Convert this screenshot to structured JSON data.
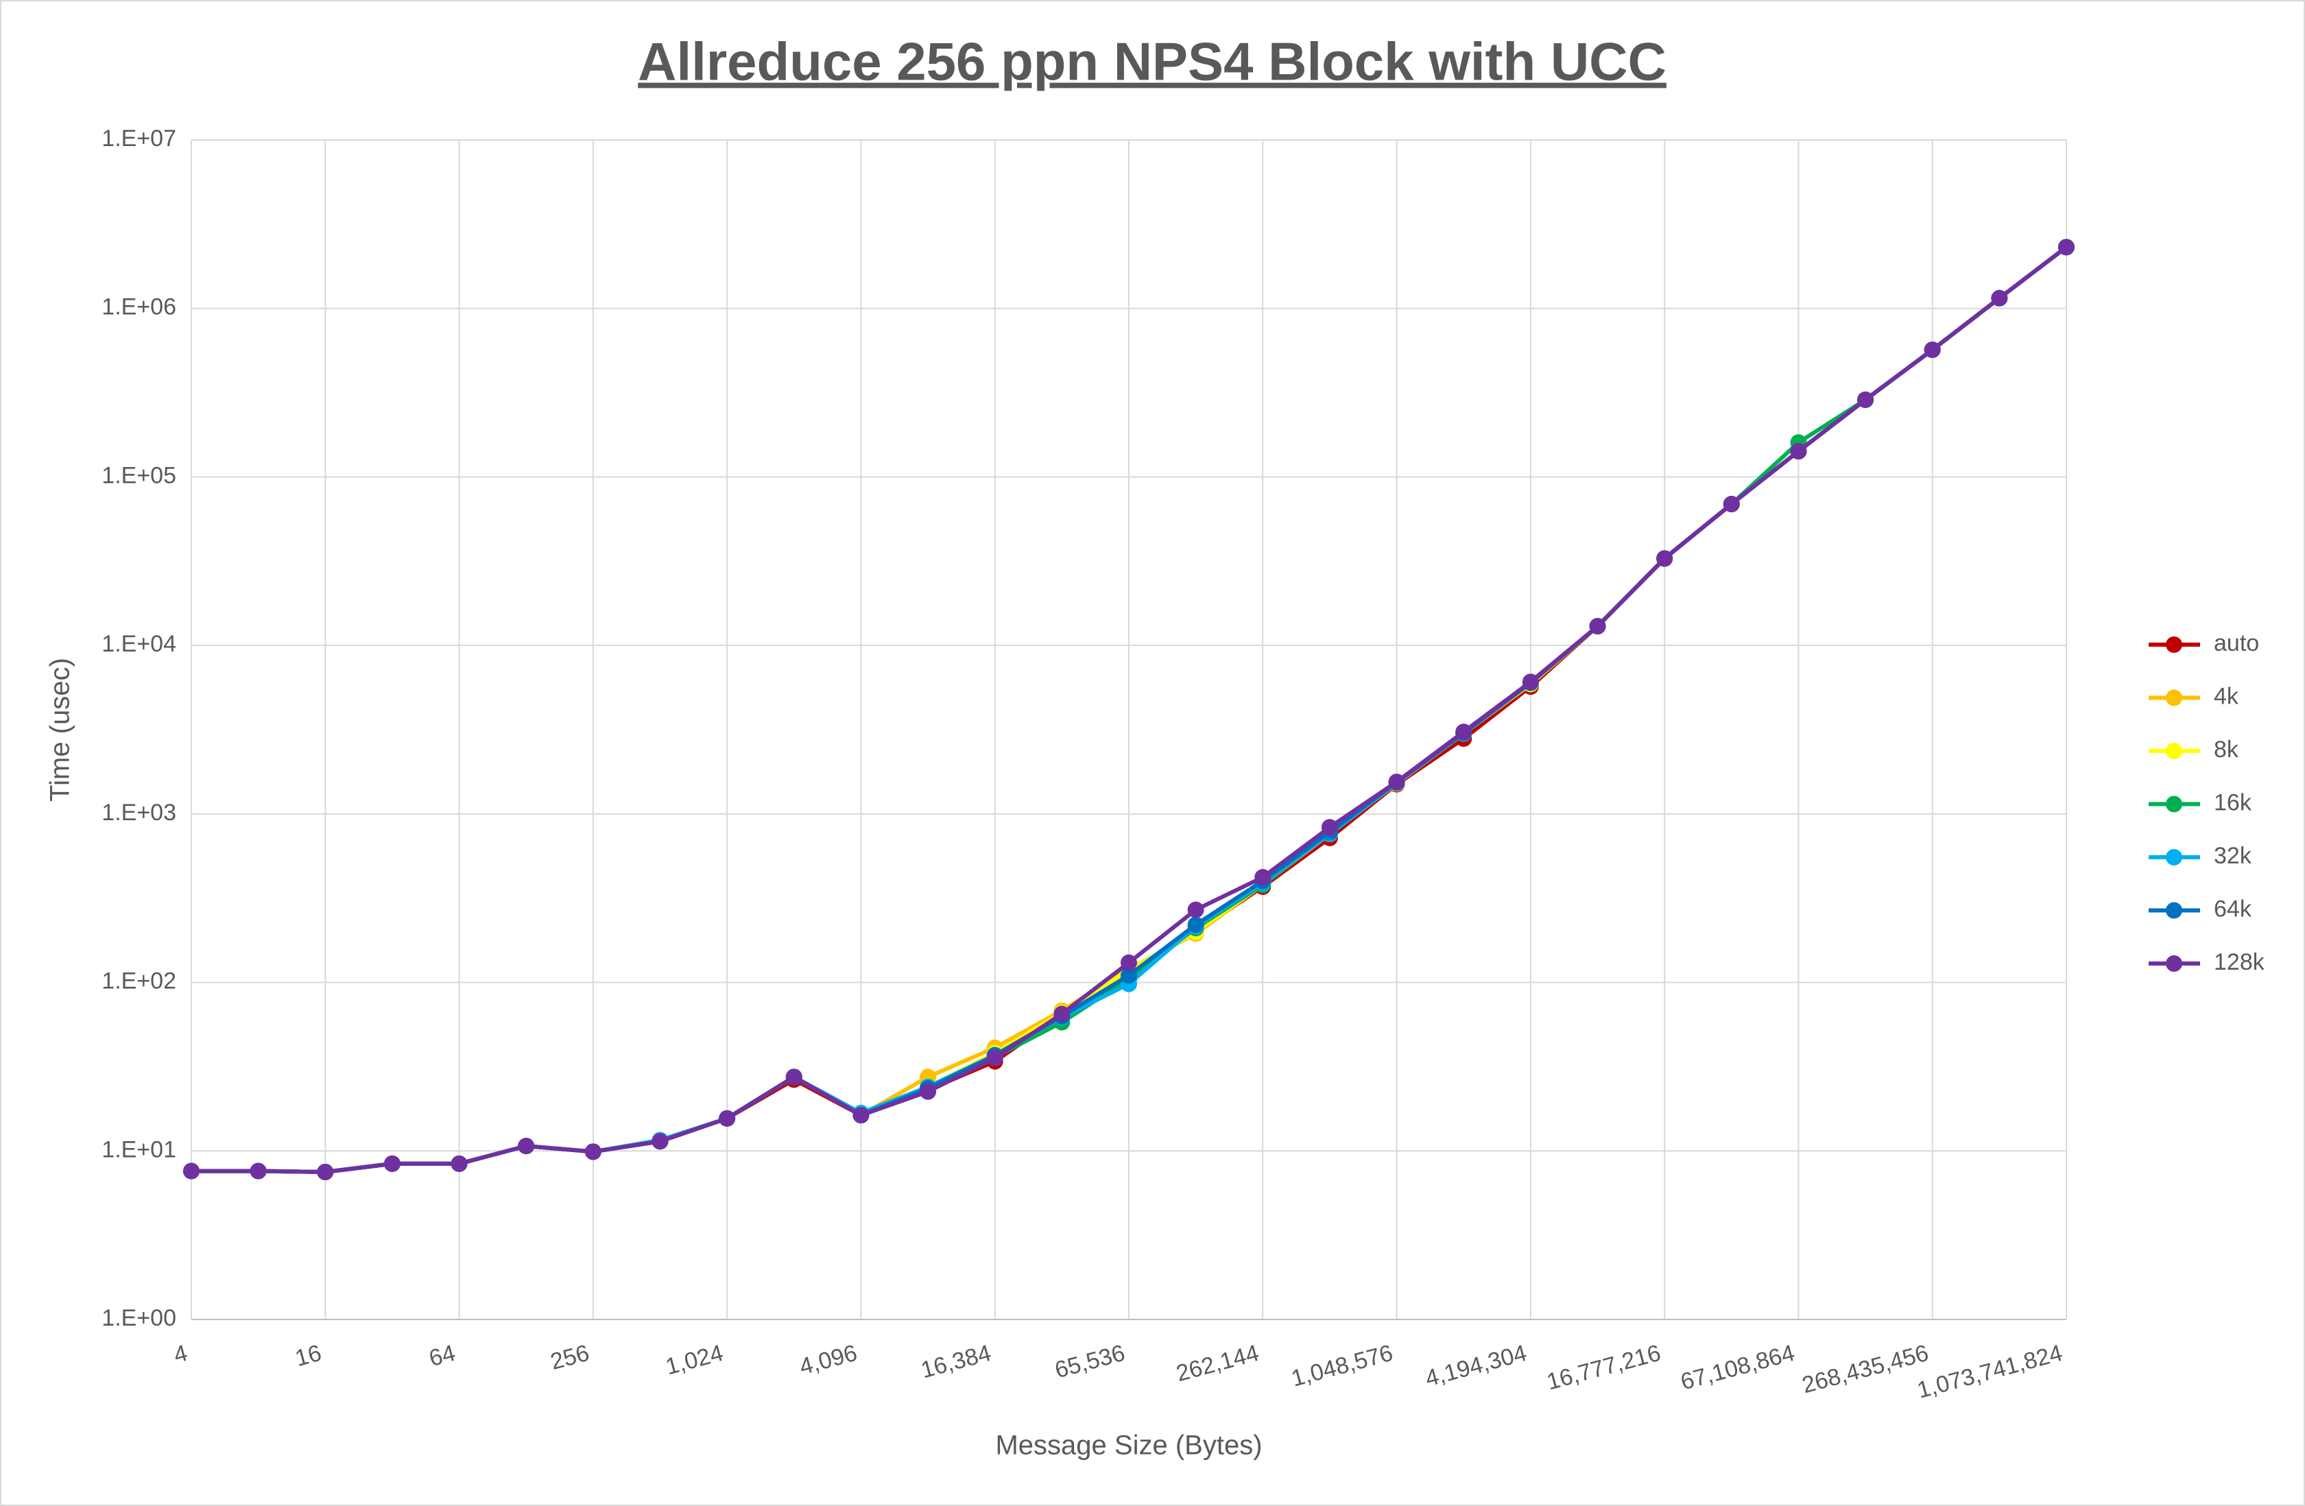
{
  "chart_data": {
    "type": "line",
    "title": "Allreduce 256 ppn NPS4 Block with UCC",
    "x_label": "Message Size (Bytes)",
    "y_label": "Time (usec)",
    "x_log_base": 2,
    "y_log_base": 10,
    "grid": true,
    "legend": "right",
    "x": [
      4,
      8,
      16,
      32,
      64,
      128,
      256,
      512,
      1024,
      2048,
      4096,
      8192,
      16384,
      32768,
      65536,
      131072,
      262144,
      524288,
      1048576,
      2097152,
      4194304,
      8388608,
      16777216,
      33554432,
      67108864,
      134217728,
      268435456,
      536870912,
      1073741824
    ],
    "xlim": [
      4,
      1073741824
    ],
    "xticks": [
      4,
      16,
      64,
      256,
      {
        "value": 1024,
        "label": "1,024"
      },
      {
        "value": 4096,
        "label": "4,096"
      },
      {
        "value": 16384,
        "label": "16,384"
      },
      {
        "value": 65536,
        "label": "65,536"
      },
      {
        "value": 262144,
        "label": "262,144"
      },
      {
        "value": 1048576,
        "label": "1,048,576"
      },
      {
        "value": 4194304,
        "label": "4,194,304"
      },
      {
        "value": 16777216,
        "label": "16,777,216"
      },
      {
        "value": 67108864,
        "label": "67,108,864"
      },
      {
        "value": 268435456,
        "label": "268,435,456"
      },
      {
        "value": 1073741824,
        "label": "1,073,741,824"
      }
    ],
    "ylim": [
      1,
      10000000
    ],
    "yticks": [
      {
        "value": 1,
        "label": "1.E+00"
      },
      {
        "value": 10,
        "label": "1.E+01"
      },
      {
        "value": 100,
        "label": "1.E+02"
      },
      {
        "value": 1000,
        "label": "1.E+03"
      },
      {
        "value": 10000,
        "label": "1.E+04"
      },
      {
        "value": 100000,
        "label": "1.E+05"
      },
      {
        "value": 1000000,
        "label": "1.E+06"
      },
      {
        "value": 10000000,
        "label": "1.E+07"
      }
    ],
    "series": [
      {
        "name": "auto",
        "color": "#c00000",
        "values": [
          7.6,
          7.6,
          7.5,
          8.4,
          8.4,
          10.7,
          9.9,
          11.4,
          15.6,
          26.5,
          16.3,
          23,
          34,
          64,
          115,
          200,
          370,
          720,
          1500,
          2800,
          5700,
          13000,
          32800,
          69000,
          142000,
          287000,
          568000,
          1150000,
          2310000
        ]
      },
      {
        "name": "4k",
        "color": "#ffc000",
        "values": [
          7.6,
          7.6,
          7.5,
          8.4,
          8.4,
          10.7,
          9.9,
          11.4,
          15.6,
          27.5,
          16.3,
          27.5,
          41,
          68,
          120,
          195,
          380,
          760,
          1520,
          3000,
          5900,
          13000,
          32800,
          69000,
          142000,
          287000,
          568000,
          1150000,
          2310000
        ]
      },
      {
        "name": "8k",
        "color": "#ffff00",
        "values": [
          7.6,
          7.6,
          7.5,
          8.4,
          8.4,
          10.7,
          9.9,
          11.4,
          15.6,
          27.5,
          16.3,
          24,
          38,
          66,
          118,
          200,
          385,
          770,
          1520,
          3000,
          5900,
          13000,
          32800,
          69000,
          142000,
          287000,
          568000,
          1150000,
          2310000
        ]
      },
      {
        "name": "16k",
        "color": "#00b050",
        "values": [
          7.6,
          7.6,
          7.5,
          8.4,
          8.4,
          10.7,
          9.9,
          11.4,
          15.6,
          27.5,
          16.3,
          23,
          36,
          58,
          105,
          210,
          380,
          770,
          1530,
          3000,
          6000,
          13000,
          32800,
          69000,
          160000,
          287000,
          568000,
          1150000,
          2310000
        ]
      },
      {
        "name": "32k",
        "color": "#00b0f0",
        "values": [
          7.6,
          7.6,
          7.5,
          8.4,
          8.4,
          10.7,
          9.9,
          11.6,
          15.6,
          27.5,
          16.8,
          24,
          37,
          62,
          98,
          215,
          390,
          760,
          1530,
          3000,
          6000,
          13000,
          32800,
          69000,
          142000,
          287000,
          568000,
          1150000,
          2310000
        ]
      },
      {
        "name": "64k",
        "color": "#0070c0",
        "values": [
          7.6,
          7.6,
          7.5,
          8.4,
          8.4,
          10.7,
          9.9,
          11.4,
          15.6,
          27.5,
          16.3,
          23.5,
          37,
          63,
          110,
          220,
          400,
          780,
          1540,
          3030,
          6000,
          13000,
          32800,
          69000,
          142000,
          287000,
          568000,
          1150000,
          2310000
        ]
      },
      {
        "name": "128k",
        "color": "#7030a0",
        "values": [
          7.6,
          7.6,
          7.5,
          8.4,
          8.4,
          10.7,
          9.9,
          11.4,
          15.6,
          27.5,
          16.3,
          22.5,
          35.6,
          65,
          131,
          270,
          421,
          834,
          1550,
          3070,
          6080,
          13000,
          32800,
          69000,
          142000,
          287000,
          568000,
          1150000,
          2310000
        ]
      }
    ]
  }
}
